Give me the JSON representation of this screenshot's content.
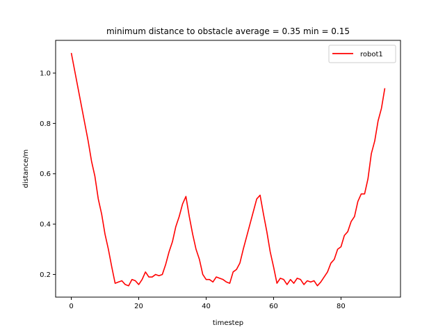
{
  "chart_data": {
    "type": "line",
    "title": "minimum distance to obstacle average = 0.35 min = 0.15",
    "xlabel": "timestep",
    "ylabel": "distance/m",
    "xlim": [
      -4.65,
      97.65
    ],
    "ylim": [
      0.11,
      1.13
    ],
    "xticks": [
      0,
      20,
      40,
      60,
      80
    ],
    "yticks": [
      0.2,
      0.4,
      0.6,
      0.8,
      1.0
    ],
    "xtick_labels": [
      "0",
      "20",
      "40",
      "60",
      "80"
    ],
    "ytick_labels": [
      "0.2",
      "0.4",
      "0.6",
      "0.8",
      "1.0"
    ],
    "grid": false,
    "legend_position": "top-right",
    "series": [
      {
        "name": "robot1",
        "color": "#ff0000",
        "x": [
          0,
          1,
          2,
          3,
          4,
          5,
          6,
          7,
          8,
          9,
          10,
          11,
          12,
          13,
          14,
          15,
          16,
          17,
          18,
          19,
          20,
          21,
          22,
          23,
          24,
          25,
          26,
          27,
          28,
          29,
          30,
          31,
          32,
          33,
          34,
          35,
          36,
          37,
          38,
          39,
          40,
          41,
          42,
          43,
          44,
          45,
          46,
          47,
          48,
          49,
          50,
          51,
          52,
          53,
          54,
          55,
          56,
          57,
          58,
          59,
          60,
          61,
          62,
          63,
          64,
          65,
          66,
          67,
          68,
          69,
          70,
          71,
          72,
          73,
          74,
          75,
          76,
          77,
          78,
          79,
          80,
          81,
          82,
          83,
          84,
          85,
          86,
          87,
          88,
          89,
          90,
          91,
          92,
          93
        ],
        "y": [
          1.08,
          1.01,
          0.94,
          0.87,
          0.8,
          0.73,
          0.65,
          0.59,
          0.5,
          0.44,
          0.36,
          0.3,
          0.23,
          0.165,
          0.17,
          0.175,
          0.16,
          0.155,
          0.18,
          0.175,
          0.16,
          0.18,
          0.21,
          0.19,
          0.19,
          0.2,
          0.195,
          0.2,
          0.24,
          0.29,
          0.33,
          0.39,
          0.43,
          0.48,
          0.51,
          0.43,
          0.36,
          0.3,
          0.26,
          0.2,
          0.18,
          0.18,
          0.17,
          0.19,
          0.185,
          0.18,
          0.17,
          0.165,
          0.21,
          0.22,
          0.245,
          0.3,
          0.35,
          0.4,
          0.45,
          0.5,
          0.515,
          0.44,
          0.37,
          0.29,
          0.23,
          0.165,
          0.185,
          0.18,
          0.16,
          0.18,
          0.165,
          0.185,
          0.18,
          0.16,
          0.175,
          0.17,
          0.175,
          0.155,
          0.17,
          0.19,
          0.21,
          0.245,
          0.26,
          0.3,
          0.31,
          0.355,
          0.37,
          0.41,
          0.43,
          0.49,
          0.52,
          0.52,
          0.58,
          0.68,
          0.73,
          0.81,
          0.86,
          0.94
        ]
      }
    ]
  }
}
